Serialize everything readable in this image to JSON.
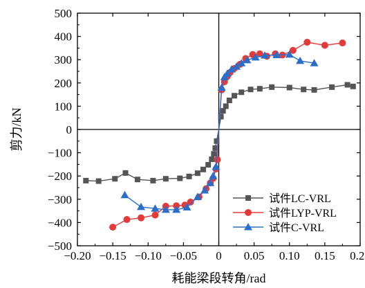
{
  "chart_data": {
    "type": "line",
    "xlabel": "耗能梁段转角/rad",
    "ylabel": "剪力/kN",
    "xlim": [
      -0.2,
      0.2
    ],
    "ylim": [
      -500,
      500
    ],
    "xticks": [
      -0.2,
      -0.15,
      -0.1,
      -0.05,
      0.0,
      0.05,
      0.1,
      0.15,
      0.2
    ],
    "xtick_labels": [
      "−0.20",
      "−0.15",
      "−0.10",
      "−0.05",
      "0",
      "0.05",
      "0.10",
      "0.15",
      "0.20"
    ],
    "yticks": [
      -500,
      -400,
      -300,
      -200,
      -100,
      0,
      100,
      200,
      300,
      400,
      500
    ],
    "ytick_labels": [
      "−500",
      "−400",
      "−300",
      "−200",
      "−100",
      "0",
      "100",
      "200",
      "300",
      "400",
      "500"
    ],
    "grid": false,
    "legend_position": "lower-right",
    "series": [
      {
        "name": "试件LC-VRL",
        "marker": "square",
        "color": "#555555",
        "points": [
          [
            -0.188,
            -220
          ],
          [
            -0.17,
            -222
          ],
          [
            -0.147,
            -212
          ],
          [
            -0.132,
            -187
          ],
          [
            -0.115,
            -215
          ],
          [
            -0.093,
            -220
          ],
          [
            -0.075,
            -212
          ],
          [
            -0.055,
            -210
          ],
          [
            -0.042,
            -202
          ],
          [
            -0.03,
            -188
          ],
          [
            -0.022,
            -172
          ],
          [
            -0.015,
            -152
          ],
          [
            -0.01,
            -128
          ],
          [
            -0.007,
            -105
          ],
          [
            -0.005,
            -80
          ],
          [
            -0.003,
            -50
          ],
          [
            0.0,
            0
          ],
          [
            0.003,
            55
          ],
          [
            0.006,
            80
          ],
          [
            0.01,
            100
          ],
          [
            0.015,
            125
          ],
          [
            0.022,
            145
          ],
          [
            0.032,
            160
          ],
          [
            0.045,
            172
          ],
          [
            0.058,
            175
          ],
          [
            0.075,
            182
          ],
          [
            0.1,
            180
          ],
          [
            0.12,
            172
          ],
          [
            0.135,
            170
          ],
          [
            0.16,
            182
          ],
          [
            0.182,
            192
          ],
          [
            0.19,
            185
          ]
        ]
      },
      {
        "name": "试件LYP-VRL",
        "marker": "circle",
        "color": "#e53a3a",
        "points": [
          [
            -0.15,
            -420
          ],
          [
            -0.13,
            -387
          ],
          [
            -0.11,
            -380
          ],
          [
            -0.09,
            -368
          ],
          [
            -0.075,
            -330
          ],
          [
            -0.06,
            -328
          ],
          [
            -0.048,
            -325
          ],
          [
            -0.04,
            -312
          ],
          [
            -0.028,
            -290
          ],
          [
            -0.018,
            -255
          ],
          [
            -0.012,
            -230
          ],
          [
            -0.008,
            -210
          ],
          [
            -0.004,
            -170
          ],
          [
            -0.002,
            -130
          ],
          [
            0.0,
            0
          ],
          [
            0.004,
            170
          ],
          [
            0.008,
            205
          ],
          [
            0.012,
            228
          ],
          [
            0.016,
            245
          ],
          [
            0.022,
            262
          ],
          [
            0.03,
            280
          ],
          [
            0.038,
            305
          ],
          [
            0.048,
            322
          ],
          [
            0.058,
            325
          ],
          [
            0.068,
            315
          ],
          [
            0.08,
            325
          ],
          [
            0.09,
            320
          ],
          [
            0.105,
            340
          ],
          [
            0.125,
            375
          ],
          [
            0.15,
            362
          ],
          [
            0.175,
            372
          ]
        ]
      },
      {
        "name": "试件C-VRL",
        "marker": "triangle",
        "color": "#2b6ec9",
        "points": [
          [
            -0.133,
            -282
          ],
          [
            -0.11,
            -333
          ],
          [
            -0.09,
            -340
          ],
          [
            -0.075,
            -345
          ],
          [
            -0.06,
            -345
          ],
          [
            -0.045,
            -335
          ],
          [
            -0.03,
            -290
          ],
          [
            -0.02,
            -262
          ],
          [
            -0.012,
            -230
          ],
          [
            -0.008,
            -200
          ],
          [
            -0.004,
            -160
          ],
          [
            0.0,
            0
          ],
          [
            0.004,
            180
          ],
          [
            0.008,
            225
          ],
          [
            0.012,
            240
          ],
          [
            0.018,
            258
          ],
          [
            0.025,
            270
          ],
          [
            0.032,
            285
          ],
          [
            0.04,
            298
          ],
          [
            0.052,
            310
          ],
          [
            0.065,
            318
          ],
          [
            0.082,
            320
          ],
          [
            0.1,
            322
          ],
          [
            0.115,
            295
          ],
          [
            0.135,
            285
          ]
        ]
      }
    ]
  }
}
